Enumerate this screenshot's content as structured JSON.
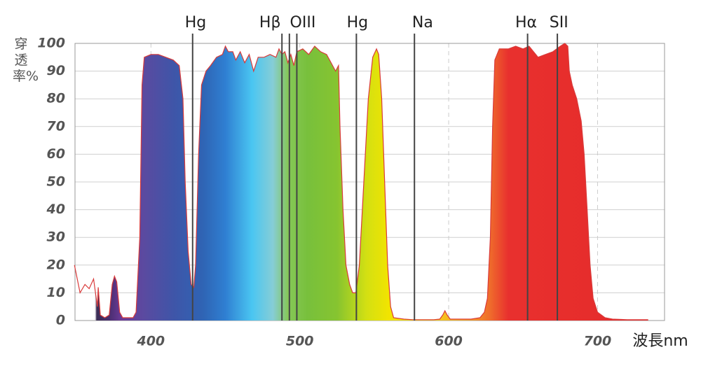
{
  "chart_data": {
    "type": "area",
    "y_label": "穿透率%",
    "x_label": "波長nm",
    "xlim": [
      349,
      745
    ],
    "ylim": [
      0,
      100
    ],
    "xticks": [
      400,
      500,
      600,
      700
    ],
    "yticks": [
      0,
      10,
      20,
      30,
      40,
      50,
      60,
      70,
      80,
      90,
      100
    ],
    "grid": true,
    "color": "#d93a3a",
    "x": [
      348.6,
      352.4,
      355.7,
      358.5,
      361.5,
      364,
      364.6,
      366,
      369,
      372,
      374,
      375.5,
      377,
      379,
      381,
      388,
      390,
      392.5,
      394,
      395.5,
      400,
      405,
      410,
      415,
      419,
      421.5,
      423,
      425,
      427,
      428.8,
      430,
      432,
      434,
      437,
      440,
      444,
      448,
      450,
      452,
      455,
      457,
      460,
      463,
      466,
      469,
      472,
      476,
      480,
      484,
      486,
      488,
      490,
      492,
      494,
      496,
      498,
      502,
      506,
      510,
      514,
      518,
      521,
      524,
      526,
      527,
      529,
      531,
      533.5,
      535.5,
      537.7,
      540,
      543,
      546,
      549,
      551.5,
      553,
      555,
      557,
      559,
      561,
      563,
      570,
      576,
      590,
      594,
      596,
      597.5,
      599,
      601,
      615,
      621,
      624,
      626,
      628,
      629.5,
      631,
      634,
      640,
      645,
      650,
      654,
      657,
      660,
      665,
      670,
      675,
      678,
      680,
      681,
      683,
      686,
      689,
      691,
      693,
      695,
      697,
      700,
      705,
      710,
      720,
      734
    ],
    "values": [
      20,
      10,
      13,
      11.5,
      15,
      5,
      12,
      2,
      1,
      2,
      13,
      16,
      14,
      3,
      1,
      1,
      3,
      30,
      85,
      95,
      96,
      96,
      95,
      94,
      92,
      80,
      50,
      25,
      13,
      12,
      20,
      60,
      85,
      90,
      92,
      95,
      96,
      99,
      97,
      97,
      94,
      97,
      93,
      96,
      90,
      95,
      95,
      96,
      95,
      98,
      96,
      97,
      93,
      96,
      92,
      97,
      98,
      96,
      99,
      97,
      96,
      93,
      90,
      92,
      70,
      40,
      20,
      13,
      10,
      10,
      20,
      50,
      80,
      95,
      98,
      96,
      80,
      50,
      20,
      5,
      1,
      0.5,
      0.3,
      0.3,
      0.5,
      2,
      3.5,
      2,
      0.5,
      0.5,
      1,
      3,
      8,
      30,
      70,
      94,
      98,
      98,
      99,
      98,
      99,
      97,
      95,
      96,
      97,
      99,
      100,
      99,
      90,
      85,
      80,
      72,
      60,
      40,
      20,
      8,
      3,
      1,
      0.5,
      0.3,
      0.3
    ],
    "emission_lines": [
      428,
      488,
      493,
      498,
      538,
      577,
      653,
      673
    ],
    "line_labels": [
      {
        "text": "Hg",
        "x": 430
      },
      {
        "text": "Hβ",
        "x": 480
      },
      {
        "text": "OIII",
        "x": 502
      },
      {
        "text": "Hg",
        "x": 538.7
      },
      {
        "text": "Na",
        "x": 582.5
      },
      {
        "text": "Hα",
        "x": 652
      },
      {
        "text": "SII",
        "x": 674
      }
    ]
  }
}
